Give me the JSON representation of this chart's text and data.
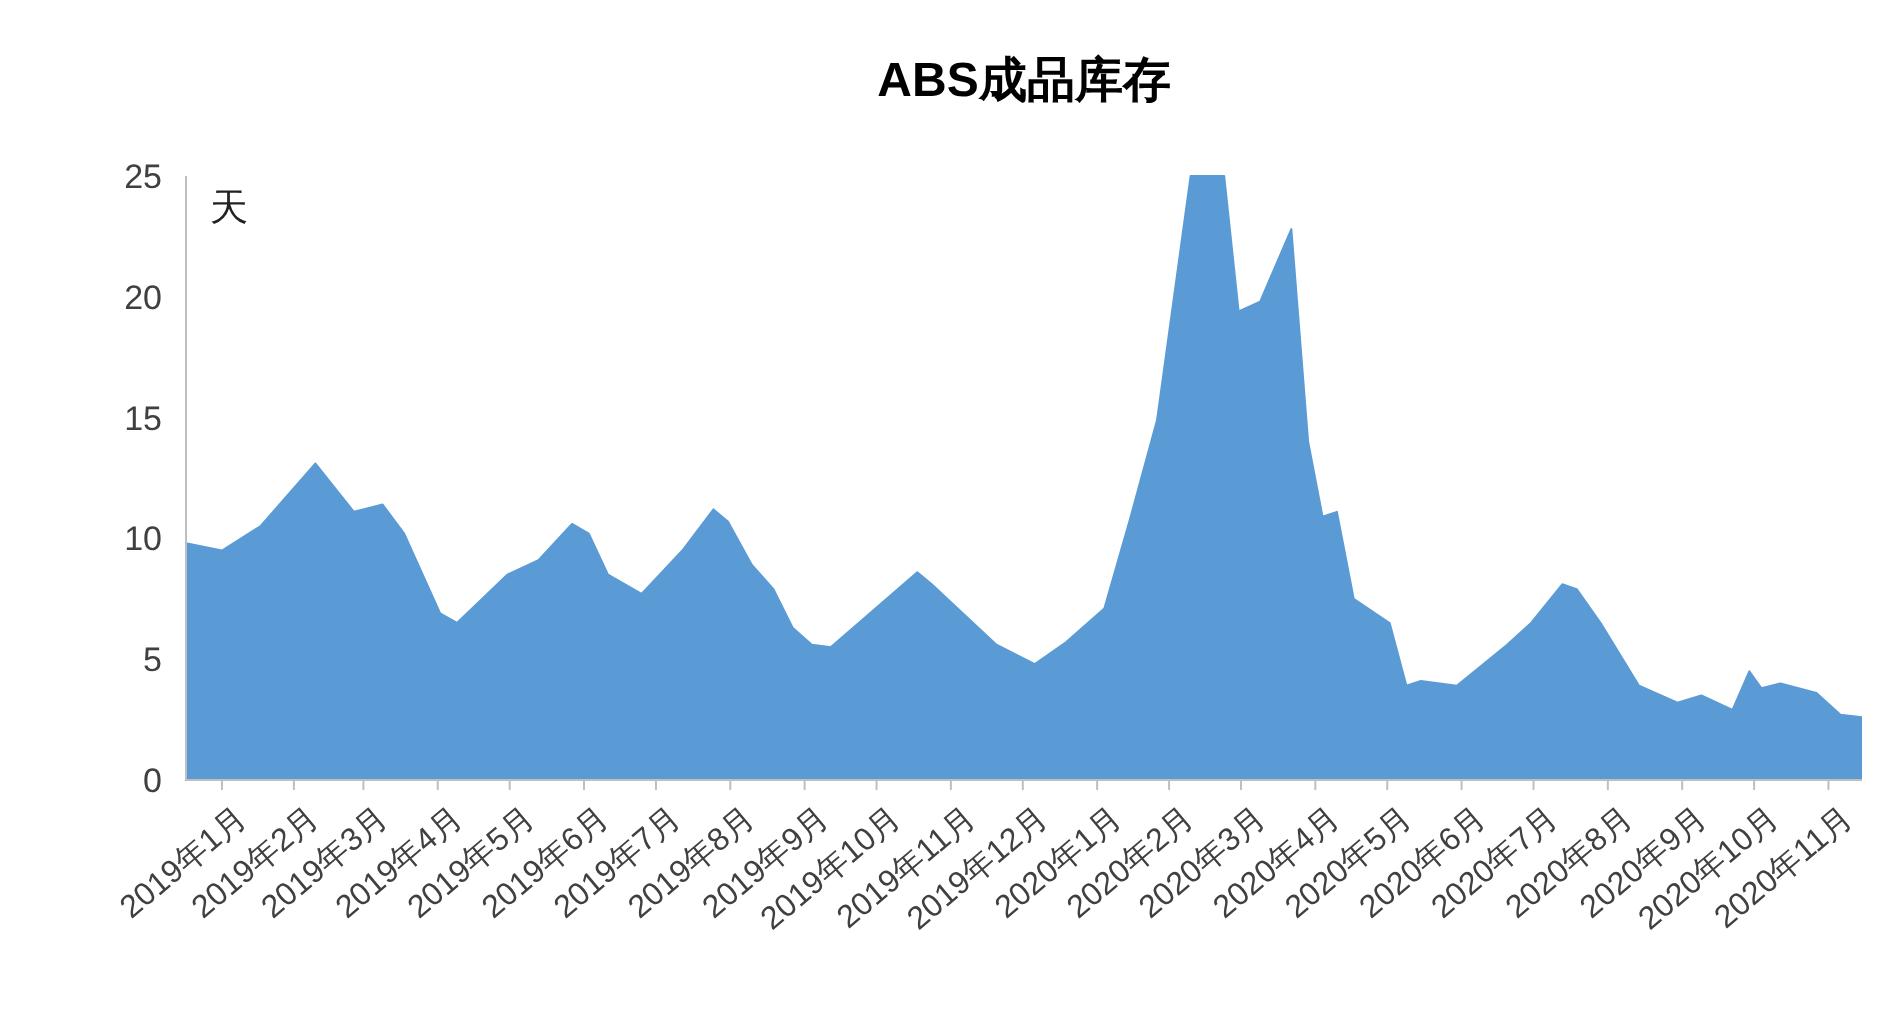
{
  "chart_data": {
    "type": "area",
    "title": "ABS成品库存",
    "ylabel": "天",
    "color": "#5b9bd5",
    "grid": false,
    "x": [
      "2019-01-01",
      "2019-01-16",
      "2019-02-01",
      "2019-02-24",
      "2019-03-12",
      "2019-03-24",
      "2019-04-02",
      "2019-04-17",
      "2019-04-24",
      "2019-05-15",
      "2019-05-28",
      "2019-06-11",
      "2019-06-18",
      "2019-06-26",
      "2019-07-10",
      "2019-07-27",
      "2019-08-09",
      "2019-08-15",
      "2019-08-25",
      "2019-09-03",
      "2019-09-11",
      "2019-09-19",
      "2019-09-27",
      "2019-11-02",
      "2019-11-08",
      "2019-12-05",
      "2019-12-21",
      "2020-01-03",
      "2020-01-19",
      "2020-01-30",
      "2020-02-10",
      "2020-02-24",
      "2020-03-09",
      "2020-03-15",
      "2020-03-24",
      "2020-04-06",
      "2020-04-13",
      "2020-04-19",
      "2020-04-25",
      "2020-05-02",
      "2020-05-17",
      "2020-05-24",
      "2020-05-30",
      "2020-06-14",
      "2020-07-05",
      "2020-07-15",
      "2020-07-28",
      "2020-08-03",
      "2020-08-13",
      "2020-08-29",
      "2020-09-14",
      "2020-09-24",
      "2020-10-07",
      "2020-10-14",
      "2020-10-19",
      "2020-10-27",
      "2020-11-11",
      "2020-11-21",
      "2020-11-30"
    ],
    "values": [
      9.8,
      9.5,
      10.5,
      13.1,
      11.1,
      11.4,
      10.2,
      6.9,
      6.5,
      8.5,
      9.1,
      10.6,
      10.2,
      8.5,
      7.7,
      9.5,
      11.2,
      10.7,
      8.9,
      7.9,
      6.3,
      5.6,
      5.5,
      8.6,
      8.1,
      5.6,
      4.8,
      5.7,
      7.1,
      10.9,
      14.9,
      25,
      25,
      19.4,
      19.8,
      22.8,
      14,
      10.9,
      11.1,
      7.5,
      6.5,
      3.9,
      4.1,
      3.9,
      5.6,
      6.5,
      8.1,
      7.9,
      6.5,
      3.9,
      3.2,
      3.5,
      2.9,
      4.5,
      3.8,
      4.0,
      3.6,
      2.7,
      2.6
    ],
    "xlim": [
      "2019-01-01",
      "2020-11-30"
    ],
    "xticks": [
      {
        "value": "2019-01-16",
        "label": "2019年1月"
      },
      {
        "value": "2019-02-15",
        "label": "2019年2月"
      },
      {
        "value": "2019-03-16",
        "label": "2019年3月"
      },
      {
        "value": "2019-04-16",
        "label": "2019年4月"
      },
      {
        "value": "2019-05-16",
        "label": "2019年5月"
      },
      {
        "value": "2019-06-16",
        "label": "2019年6月"
      },
      {
        "value": "2019-07-16",
        "label": "2019年7月"
      },
      {
        "value": "2019-08-16",
        "label": "2019年8月"
      },
      {
        "value": "2019-09-16",
        "label": "2019年9月"
      },
      {
        "value": "2019-10-16",
        "label": "2019年10月"
      },
      {
        "value": "2019-11-16",
        "label": "2019年11月"
      },
      {
        "value": "2019-12-16",
        "label": "2019年12月"
      },
      {
        "value": "2020-01-16",
        "label": "2020年1月"
      },
      {
        "value": "2020-02-15",
        "label": "2020年2月"
      },
      {
        "value": "2020-03-16",
        "label": "2020年3月"
      },
      {
        "value": "2020-04-16",
        "label": "2020年4月"
      },
      {
        "value": "2020-05-16",
        "label": "2020年5月"
      },
      {
        "value": "2020-06-16",
        "label": "2020年6月"
      },
      {
        "value": "2020-07-16",
        "label": "2020年7月"
      },
      {
        "value": "2020-08-16",
        "label": "2020年8月"
      },
      {
        "value": "2020-09-16",
        "label": "2020年9月"
      },
      {
        "value": "2020-10-16",
        "label": "2020年10月"
      },
      {
        "value": "2020-11-16",
        "label": "2020年11月"
      }
    ],
    "ylim": [
      0,
      25
    ],
    "yticks": [
      0,
      5,
      10,
      15,
      20,
      25
    ]
  }
}
